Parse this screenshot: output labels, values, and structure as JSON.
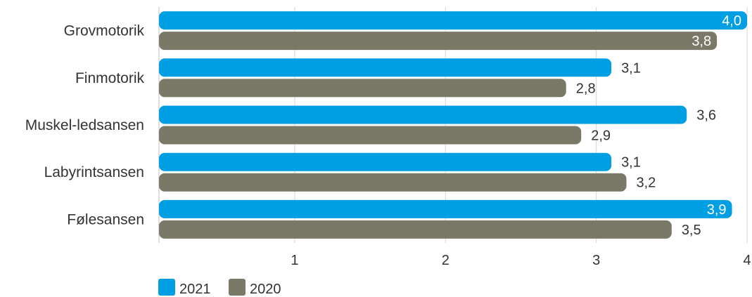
{
  "chart_data": {
    "type": "bar",
    "orientation": "horizontal",
    "categories": [
      "Grovmotorik",
      "Finmotorik",
      "Muskel-ledsansen",
      "Labyrintsansen",
      "Følesansen"
    ],
    "series": [
      {
        "name": "2021",
        "values": [
          4.0,
          3.1,
          3.6,
          3.1,
          3.9
        ],
        "labels": [
          "4,0",
          "3,1",
          "3,6",
          "3,1",
          "3,9"
        ],
        "color": "#009fe3"
      },
      {
        "name": "2020",
        "values": [
          3.8,
          2.8,
          2.9,
          3.2,
          3.5
        ],
        "labels": [
          "3,8",
          "2,8",
          "2,9",
          "3,2",
          "3,5"
        ],
        "color": "#7a7866"
      }
    ],
    "xlim": [
      0.1,
      4
    ],
    "xticks": [
      1,
      2,
      3,
      4
    ],
    "xtick_labels": [
      "1",
      "2",
      "3",
      "4"
    ],
    "grid": true,
    "legend": "bottom-left",
    "title": "",
    "xlabel": "",
    "ylabel": ""
  }
}
